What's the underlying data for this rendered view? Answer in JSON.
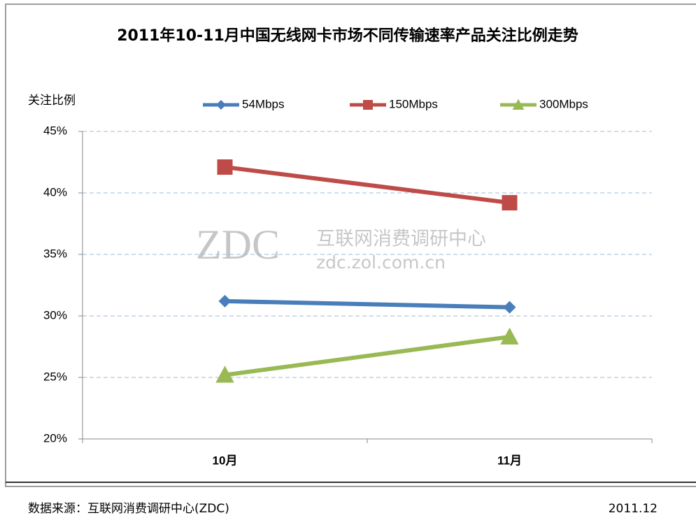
{
  "chart_data": {
    "type": "line",
    "title": "2011年10-11月中国无线网卡市场不同传输速率产品关注比例走势",
    "y_label": "关注比例",
    "categories": [
      "10月",
      "11月"
    ],
    "series": [
      {
        "name": "54Mbps",
        "color": "#4a7ebb",
        "marker": "diamond",
        "values": [
          31.2,
          30.7
        ]
      },
      {
        "name": "150Mbps",
        "color": "#be4b48",
        "marker": "square",
        "values": [
          42.1,
          39.2
        ]
      },
      {
        "name": "300Mbps",
        "color": "#98b954",
        "marker": "triangle",
        "values": [
          25.2,
          28.3
        ]
      }
    ],
    "ylim": [
      20,
      45
    ],
    "yticks": [
      {
        "value": 20,
        "label": "20%"
      },
      {
        "value": 25,
        "label": "25%"
      },
      {
        "value": 30,
        "label": "30%"
      },
      {
        "value": 35,
        "label": "35%"
      },
      {
        "value": 40,
        "label": "40%"
      },
      {
        "value": 45,
        "label": "45%"
      }
    ],
    "grid": true,
    "legend": "top",
    "watermark": [
      "ZDC",
      "互联网消费调研中心",
      "zdc.zol.com.cn"
    ],
    "source": "数据来源：互联网消费调研中心(ZDC)",
    "date": "2011.12"
  }
}
